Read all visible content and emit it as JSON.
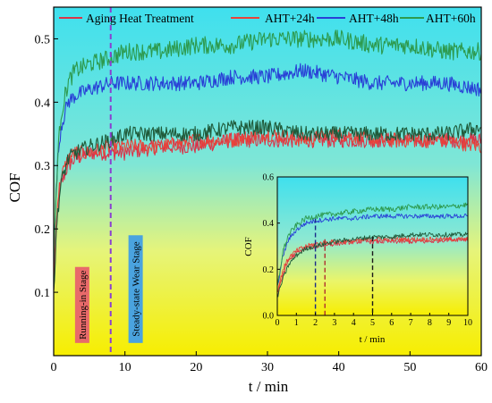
{
  "chart_data": [
    {
      "type": "line",
      "xlabel": "t / min",
      "ylabel": "COF",
      "xlim": [
        0,
        60
      ],
      "ylim": [
        0,
        0.55
      ],
      "x_ticks": [
        0,
        10,
        20,
        30,
        40,
        50,
        60
      ],
      "x_tick_labels": [
        "0",
        "10",
        "20",
        "30",
        "40",
        "50",
        "60"
      ],
      "y_ticks": [
        0.1,
        0.2,
        0.3,
        0.4,
        0.5
      ],
      "y_tick_labels": [
        "0.1",
        "0.2",
        "0.3",
        "0.4",
        "0.5"
      ],
      "background": "gradient cyan (top) to yellow (bottom)",
      "legend_position": "top",
      "legend": [
        {
          "label": "Aging Heat Treatment",
          "color": "#d9344a"
        },
        {
          "label": "AHT+24h",
          "color": "#e8433a"
        },
        {
          "label": "AHT+48h",
          "color": "#2940d6"
        },
        {
          "label": "AHT+60h",
          "color": "#2d9a4e"
        }
      ],
      "series": [
        {
          "name": "Aging Heat Treatment",
          "color": "#d9344a",
          "x": [
            0,
            0.5,
            1,
            2,
            3,
            5,
            8,
            10,
            15,
            20,
            25,
            30,
            35,
            40,
            45,
            50,
            55,
            60
          ],
          "y": [
            0.1,
            0.22,
            0.27,
            0.3,
            0.31,
            0.32,
            0.32,
            0.32,
            0.33,
            0.33,
            0.34,
            0.34,
            0.34,
            0.34,
            0.34,
            0.34,
            0.34,
            0.34
          ],
          "noise": 0.012
        },
        {
          "name": "AHT+24h",
          "color": "#e8433a",
          "x": [
            0,
            0.5,
            1,
            2,
            3,
            5,
            8,
            10,
            15,
            20,
            25,
            30,
            35,
            40,
            45,
            50,
            55,
            60
          ],
          "y": [
            0.12,
            0.24,
            0.28,
            0.31,
            0.32,
            0.32,
            0.33,
            0.33,
            0.33,
            0.34,
            0.34,
            0.35,
            0.34,
            0.35,
            0.34,
            0.34,
            0.34,
            0.33
          ],
          "noise": 0.012
        },
        {
          "name": "AHT+48h",
          "color": "#2940d6",
          "x": [
            0,
            0.5,
            1,
            2,
            3,
            5,
            8,
            10,
            15,
            20,
            25,
            30,
            35,
            40,
            45,
            50,
            55,
            60
          ],
          "y": [
            0.15,
            0.3,
            0.36,
            0.4,
            0.41,
            0.42,
            0.43,
            0.43,
            0.43,
            0.43,
            0.44,
            0.44,
            0.45,
            0.44,
            0.43,
            0.43,
            0.43,
            0.42
          ],
          "noise": 0.012
        },
        {
          "name": "AHT+60h",
          "color": "#2d9a4e",
          "x": [
            0,
            0.5,
            1,
            2,
            3,
            5,
            8,
            10,
            15,
            20,
            25,
            30,
            35,
            40,
            45,
            50,
            55,
            60
          ],
          "y": [
            0.15,
            0.3,
            0.38,
            0.43,
            0.45,
            0.46,
            0.47,
            0.48,
            0.48,
            0.49,
            0.49,
            0.5,
            0.5,
            0.5,
            0.49,
            0.49,
            0.48,
            0.48
          ],
          "noise": 0.014
        },
        {
          "name": "AHT+60h (lower trace)",
          "color": "#1f5a3a",
          "x": [
            0,
            0.5,
            1,
            2,
            3,
            5,
            8,
            10,
            15,
            20,
            25,
            30,
            35,
            40,
            45,
            50,
            55,
            60
          ],
          "y": [
            0.1,
            0.22,
            0.27,
            0.31,
            0.32,
            0.33,
            0.34,
            0.35,
            0.35,
            0.35,
            0.36,
            0.36,
            0.35,
            0.35,
            0.35,
            0.35,
            0.35,
            0.36
          ],
          "noise": 0.012
        }
      ],
      "annotations": [
        {
          "text": "Running-in Stage",
          "x": 4,
          "y_from": 0.02,
          "y_to": 0.14,
          "box_color": "#e86a6a",
          "rotation": 90
        },
        {
          "text": "Steady-state Wear Stage",
          "x": 11.5,
          "y_from": 0.02,
          "y_to": 0.19,
          "box_color": "#4aa3df",
          "rotation": 90
        }
      ],
      "vertical_lines": [
        {
          "x": 8,
          "color": "#8a3fd1",
          "style": "dashed"
        }
      ]
    },
    {
      "type": "line",
      "role": "inset",
      "xlabel": "t / min",
      "ylabel": "COF",
      "xlim": [
        0,
        10
      ],
      "ylim": [
        0,
        0.6
      ],
      "x_ticks": [
        0,
        1,
        2,
        3,
        4,
        5,
        6,
        7,
        8,
        9,
        10
      ],
      "x_tick_labels": [
        "0",
        "1",
        "2",
        "3",
        "4",
        "5",
        "6",
        "7",
        "8",
        "9",
        "10"
      ],
      "y_ticks": [
        0.0,
        0.2,
        0.4,
        0.6
      ],
      "y_tick_labels": [
        "0.0",
        "0.2",
        "0.4",
        "0.6"
      ],
      "series": [
        {
          "name": "Aging Heat Treatment",
          "color": "#d9344a",
          "x": [
            0,
            0.3,
            0.6,
            1,
            1.5,
            2,
            3,
            4,
            5,
            6,
            7,
            8,
            9,
            10
          ],
          "y": [
            0.08,
            0.18,
            0.24,
            0.27,
            0.29,
            0.3,
            0.31,
            0.32,
            0.32,
            0.32,
            0.32,
            0.32,
            0.33,
            0.33
          ],
          "noise": 0.01
        },
        {
          "name": "AHT+24h",
          "color": "#e8433a",
          "x": [
            0,
            0.3,
            0.6,
            1,
            1.5,
            2,
            3,
            4,
            5,
            6,
            7,
            8,
            9,
            10
          ],
          "y": [
            0.1,
            0.2,
            0.25,
            0.28,
            0.3,
            0.31,
            0.32,
            0.32,
            0.33,
            0.33,
            0.33,
            0.33,
            0.33,
            0.33
          ],
          "noise": 0.01
        },
        {
          "name": "AHT+48h",
          "color": "#2940d6",
          "x": [
            0,
            0.3,
            0.6,
            1,
            1.5,
            2,
            3,
            4,
            5,
            6,
            7,
            8,
            9,
            10
          ],
          "y": [
            0.12,
            0.26,
            0.33,
            0.37,
            0.4,
            0.41,
            0.42,
            0.42,
            0.43,
            0.43,
            0.43,
            0.43,
            0.43,
            0.43
          ],
          "noise": 0.01
        },
        {
          "name": "AHT+60h",
          "color": "#2d9a4e",
          "x": [
            0,
            0.3,
            0.6,
            1,
            1.5,
            2,
            3,
            4,
            5,
            6,
            7,
            8,
            9,
            10
          ],
          "y": [
            0.12,
            0.28,
            0.35,
            0.39,
            0.42,
            0.43,
            0.44,
            0.45,
            0.46,
            0.46,
            0.47,
            0.47,
            0.47,
            0.48
          ],
          "noise": 0.012
        },
        {
          "name": "AHT+60h (lower trace)",
          "color": "#1f5a3a",
          "x": [
            0,
            0.3,
            0.6,
            1,
            1.5,
            2,
            3,
            4,
            5,
            6,
            7,
            8,
            9,
            10
          ],
          "y": [
            0.08,
            0.16,
            0.22,
            0.26,
            0.29,
            0.3,
            0.32,
            0.33,
            0.34,
            0.34,
            0.35,
            0.35,
            0.35,
            0.35
          ],
          "noise": 0.01
        }
      ],
      "vertical_lines": [
        {
          "x": 2,
          "y_top": 0.42,
          "color": "#1a2a8a",
          "style": "dashed"
        },
        {
          "x": 2.5,
          "y_top": 0.33,
          "color": "#b03030",
          "style": "dashed"
        },
        {
          "x": 5,
          "y_top": 0.34,
          "color": "#1a1a1a",
          "style": "dashed"
        }
      ]
    }
  ]
}
